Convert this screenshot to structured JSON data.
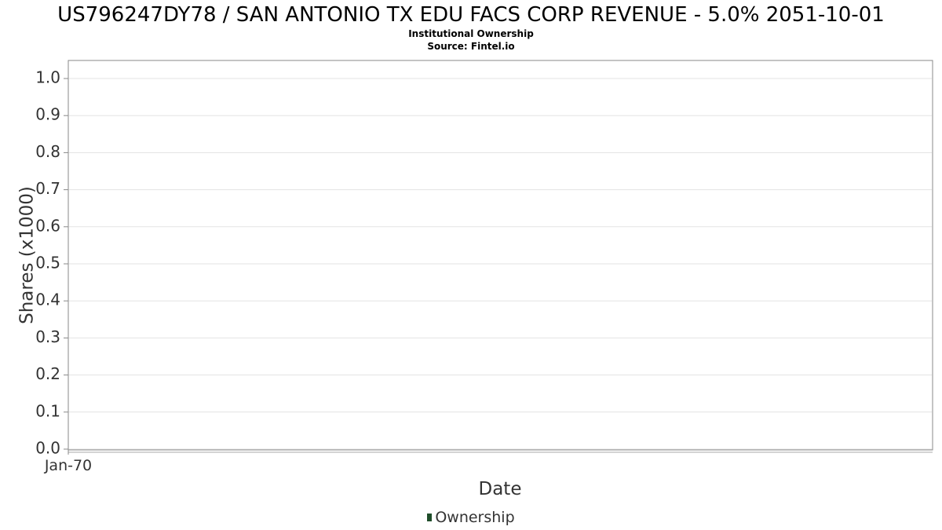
{
  "chart_data": {
    "type": "line",
    "title": "US796247DY78 / SAN ANTONIO TX EDU FACS CORP REVENUE - 5.0% 2051-10-01",
    "subtitle": [
      "Institutional Ownership",
      "Source: Fintel.io"
    ],
    "xlabel": "Date",
    "ylabel": "Shares (x1000)",
    "x_tick_labels": [
      "Jan-70"
    ],
    "y_tick_labels": [
      "0.0",
      "0.1",
      "0.2",
      "0.3",
      "0.4",
      "0.5",
      "0.6",
      "0.7",
      "0.8",
      "0.9",
      "1.0"
    ],
    "ylim": [
      0,
      1.0
    ],
    "grid": true,
    "legend_position": "bottom",
    "series": [
      {
        "name": "Ownership",
        "color": "#1f4d2a",
        "x": [],
        "values": []
      }
    ]
  }
}
